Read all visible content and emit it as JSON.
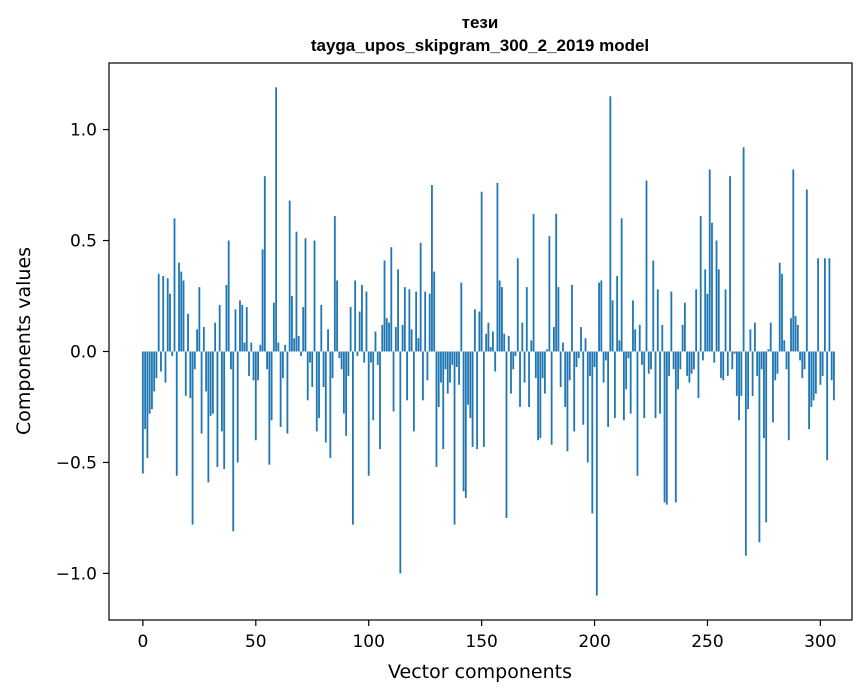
{
  "chart_data": {
    "type": "bar",
    "title": "тези",
    "subtitle": "tayga_upos_skipgram_300_2_2019 model",
    "xlabel": "Vector components",
    "ylabel": "Components values",
    "xlim": [
      -15,
      314
    ],
    "ylim": [
      -1.21,
      1.3
    ],
    "xticks": [
      0,
      50,
      100,
      150,
      200,
      250,
      300
    ],
    "xtick_labels": [
      "0",
      "50",
      "100",
      "150",
      "200",
      "250",
      "300"
    ],
    "yticks": [
      -1.0,
      -0.5,
      0.0,
      0.5,
      1.0
    ],
    "ytick_labels": [
      "−1.0",
      "−0.5",
      "0.0",
      "0.5",
      "1.0"
    ],
    "bar_color": "#1f77b4",
    "grid": false,
    "values": [
      -0.55,
      -0.35,
      -0.48,
      -0.28,
      -0.26,
      -0.18,
      -0.12,
      0.35,
      -0.09,
      0.34,
      -0.14,
      0.33,
      0.26,
      -0.02,
      0.6,
      -0.56,
      0.4,
      0.36,
      0.32,
      -0.2,
      0.17,
      -0.21,
      -0.78,
      -0.08,
      0.1,
      0.29,
      -0.37,
      0.11,
      -0.18,
      -0.59,
      -0.29,
      -0.28,
      0.13,
      -0.52,
      0.21,
      -0.36,
      -0.53,
      0.3,
      0.5,
      -0.08,
      -0.81,
      0.19,
      -0.5,
      0.23,
      0.21,
      0.04,
      0.2,
      -0.11,
      0.04,
      -0.13,
      -0.4,
      -0.13,
      0.03,
      0.46,
      0.79,
      -0.08,
      -0.51,
      -0.31,
      0.22,
      1.19,
      0.04,
      -0.34,
      -0.12,
      0.03,
      -0.37,
      0.68,
      0.25,
      0.06,
      0.54,
      0.07,
      -0.02,
      0.2,
      0.51,
      -0.22,
      -0.05,
      -0.16,
      0.5,
      -0.36,
      -0.3,
      0.21,
      -0.16,
      -0.41,
      0.1,
      -0.48,
      -0.12,
      0.61,
      0.32,
      -0.03,
      -0.08,
      -0.28,
      -0.38,
      -0.11,
      0.2,
      -0.78,
      0.32,
      -0.02,
      0.18,
      0.3,
      -0.05,
      0.27,
      -0.56,
      -0.05,
      -0.31,
      0.09,
      -0.06,
      -0.44,
      0.12,
      0.41,
      0.15,
      0.13,
      0.47,
      -0.27,
      0.11,
      0.37,
      -1.0,
      0.12,
      0.29,
      -0.22,
      0.28,
      0.1,
      -0.36,
      0.27,
      0.06,
      0.49,
      -0.22,
      0.27,
      -0.13,
      0.26,
      0.75,
      0.36,
      -0.52,
      -0.25,
      -0.14,
      -0.44,
      -0.08,
      -0.19,
      -0.14,
      -0.06,
      -0.78,
      -0.07,
      -0.15,
      0.31,
      -0.63,
      -0.66,
      -0.24,
      -0.3,
      -0.43,
      0.19,
      -0.44,
      0.18,
      0.72,
      -0.43,
      0.08,
      0.13,
      0.02,
      0.09,
      -0.09,
      0.76,
      0.32,
      0.29,
      0.08,
      -0.75,
      0.07,
      -0.19,
      -0.08,
      -0.02,
      0.42,
      -0.25,
      0.13,
      -0.14,
      0.29,
      -0.25,
      0.05,
      0.62,
      -0.12,
      -0.4,
      -0.39,
      -0.12,
      -0.19,
      0.01,
      0.52,
      -0.42,
      0.11,
      0.62,
      0.29,
      -0.16,
      0.04,
      -0.25,
      -0.45,
      -0.13,
      0.3,
      -0.36,
      -0.07,
      -0.03,
      0.11,
      -0.33,
      0.06,
      -0.5,
      -0.11,
      -0.73,
      -0.07,
      -1.1,
      0.31,
      0.32,
      -0.14,
      -0.04,
      -0.34,
      1.15,
      0.23,
      -0.3,
      0.34,
      0.05,
      0.6,
      -0.31,
      -0.17,
      -0.03,
      -0.28,
      0.23,
      0.1,
      -0.56,
      0.12,
      -0.06,
      -0.3,
      0.77,
      -0.1,
      -0.08,
      0.41,
      -0.3,
      0.28,
      -0.28,
      0.12,
      -0.68,
      -0.69,
      -0.11,
      0.27,
      -0.08,
      -0.68,
      -0.17,
      -0.08,
      0.12,
      0.22,
      -0.11,
      -0.14,
      -0.1,
      -0.08,
      0.28,
      -0.21,
      0.61,
      -0.04,
      0.37,
      0.26,
      0.82,
      0.58,
      -0.05,
      0.5,
      0.37,
      -0.12,
      -0.13,
      0.28,
      -0.11,
      0.79,
      -0.08,
      -0.01,
      -0.2,
      -0.31,
      -0.2,
      0.92,
      -0.92,
      -0.26,
      0.1,
      -0.2,
      0.13,
      -0.11,
      -0.86,
      -0.08,
      -0.39,
      -0.77,
      0.01,
      0.13,
      -0.32,
      -0.13,
      -0.1,
      0.4,
      0.35,
      0.05,
      -0.08,
      -0.4,
      0.15,
      0.82,
      0.16,
      0.12,
      -0.04,
      -0.12,
      -0.08,
      0.73,
      -0.35,
      -0.25,
      -0.22,
      -0.19,
      0.42,
      -0.15,
      -0.11,
      0.42,
      -0.49,
      0.42,
      -0.13,
      -0.22
    ]
  }
}
